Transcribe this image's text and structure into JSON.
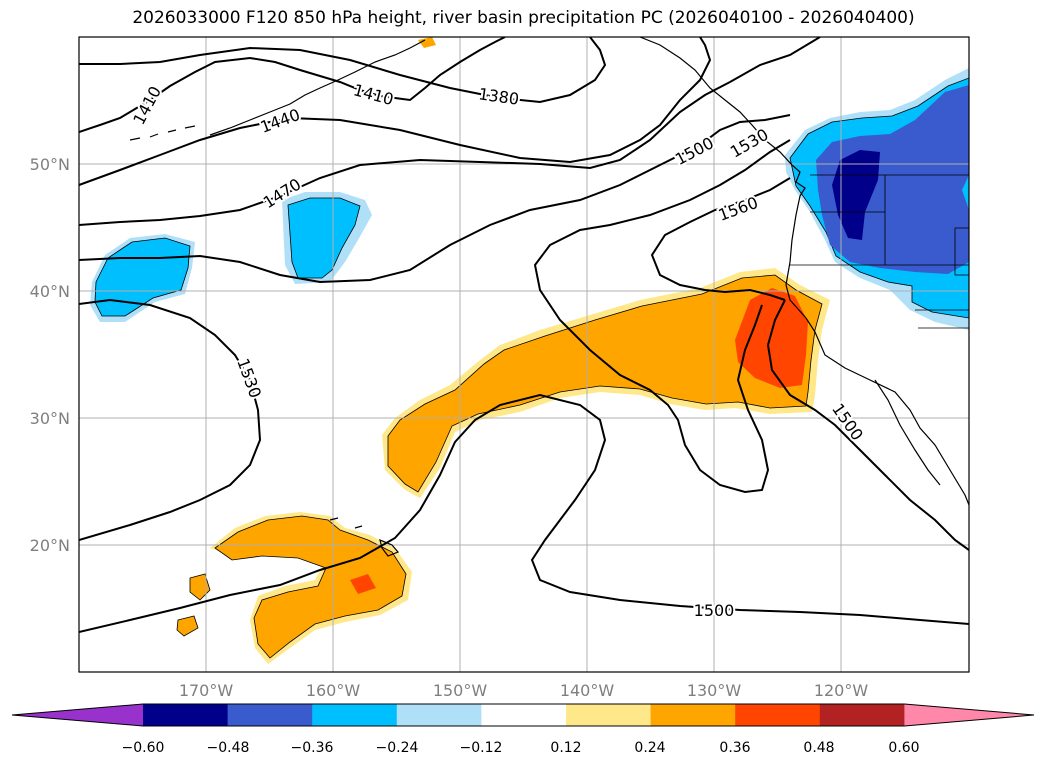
{
  "title": "2026033000 F120 850 hPa height, river basin precipitation PC (2026040100 - 2026040400)",
  "map": {
    "lat_labels": [
      "50°N",
      "40°N",
      "30°N",
      "20°N"
    ],
    "lon_labels": [
      "170°W",
      "160°W",
      "150°W",
      "140°W",
      "130°W",
      "120°W"
    ],
    "contour_labels": [
      "1410",
      "1410",
      "1440",
      "1380",
      "1470",
      "1500",
      "1530",
      "1560",
      "1530",
      "1500",
      "1500"
    ]
  },
  "colorbar": {
    "ticks": [
      "−0.60",
      "−0.48",
      "−0.36",
      "−0.24",
      "−0.12",
      "0.12",
      "0.24",
      "0.36",
      "0.48",
      "0.60"
    ],
    "colors": [
      "#9932cc",
      "#00008b",
      "#3a5bcd",
      "#00bfff",
      "#b0e0f8",
      "#ffffff",
      "#ffe88a",
      "#ffa500",
      "#ff4500",
      "#b22222",
      "#ff88aa"
    ]
  },
  "colors": {
    "positive_low": "#ffe88a",
    "positive_mid": "#ffa500",
    "positive_high": "#ff4500",
    "negative_low": "#b0e0f8",
    "negative_mid": "#00bfff",
    "negative_high": "#3a5bcd",
    "negative_max": "#00008b"
  }
}
